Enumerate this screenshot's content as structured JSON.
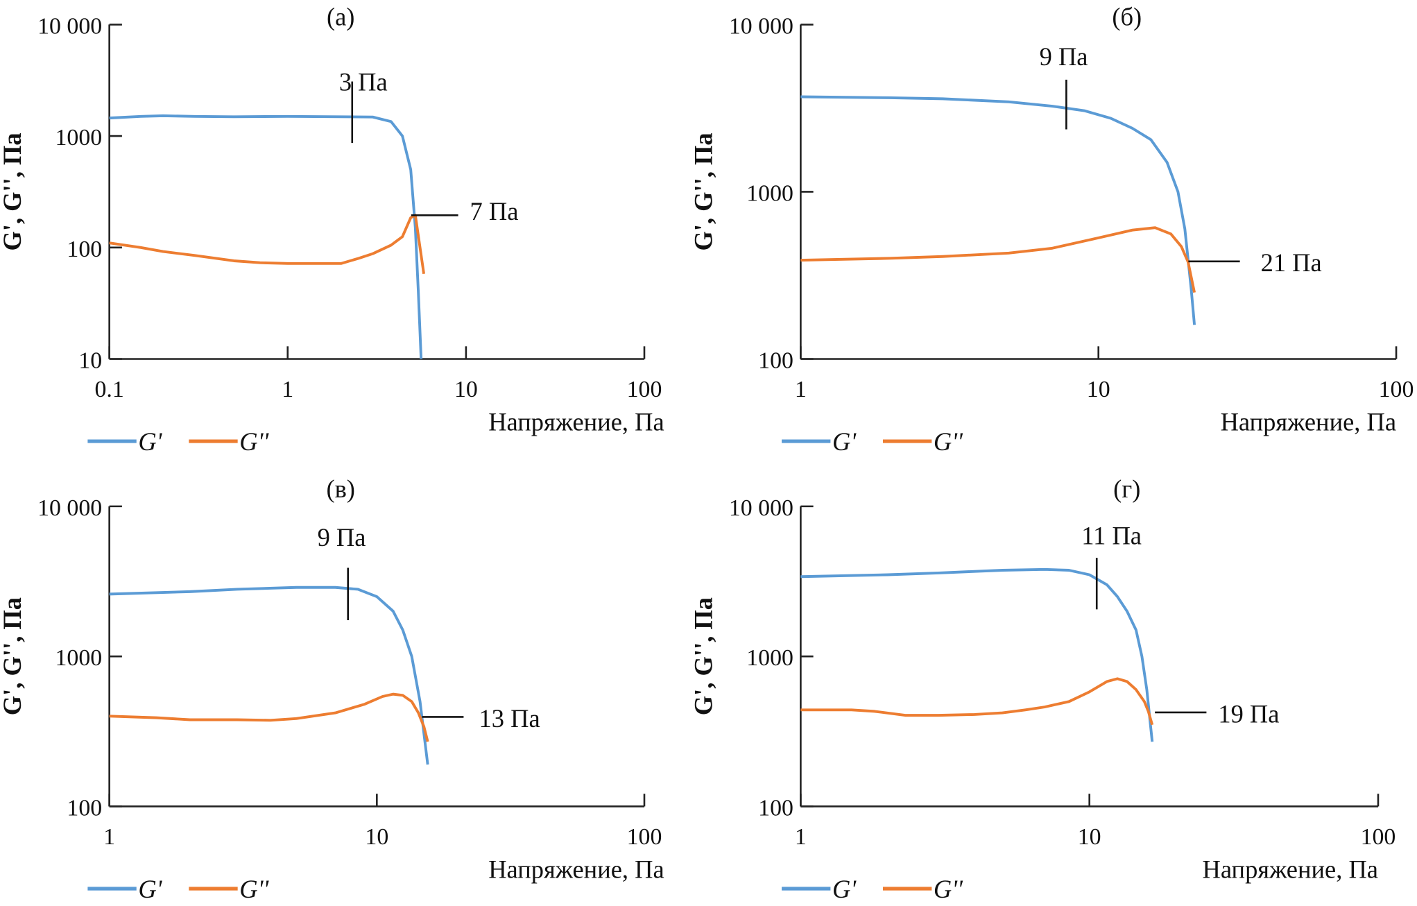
{
  "colors": {
    "G_prime": "#5b9bd5",
    "G_double_prime": "#ed7d31",
    "axis": "#222222"
  },
  "chart_data": [
    {
      "type": "line",
      "panel": "(а)",
      "xscale": "log",
      "yscale": "log",
      "xlim": [
        0.1,
        100
      ],
      "ylim": [
        10,
        10000
      ],
      "xticks": [
        "0.1",
        "1",
        "10",
        "100"
      ],
      "yticks": [
        "10",
        "100",
        "1000",
        "10 000"
      ],
      "xlabel": "Напряжение, Па",
      "ylabel": "G', G'', Па",
      "legend": "bottom-left",
      "series": [
        {
          "name": "G'",
          "x": [
            0.1,
            0.15,
            0.2,
            0.3,
            0.5,
            1,
            2,
            3,
            3.8,
            4.4,
            4.9,
            5.2,
            5.4,
            5.6
          ],
          "y": [
            1450,
            1500,
            1520,
            1500,
            1490,
            1500,
            1490,
            1480,
            1350,
            1000,
            500,
            150,
            40,
            10
          ]
        },
        {
          "name": "G''",
          "x": [
            0.1,
            0.15,
            0.2,
            0.3,
            0.5,
            0.7,
            1,
            1.5,
            2,
            2.5,
            3,
            3.8,
            4.4,
            4.9,
            5.2,
            5.8
          ],
          "y": [
            110,
            100,
            92,
            85,
            76,
            73,
            72,
            72,
            72,
            80,
            88,
            105,
            125,
            185,
            195,
            58
          ]
        }
      ],
      "annotations": [
        {
          "text": "3 Па",
          "orient": "vertical"
        },
        {
          "text": "7 Па",
          "orient": "horizontal"
        }
      ]
    },
    {
      "type": "line",
      "panel": "(б)",
      "xscale": "log",
      "yscale": "log",
      "xlim": [
        1,
        100
      ],
      "ylim": [
        100,
        10000
      ],
      "xticks": [
        "1",
        "10",
        "100"
      ],
      "yticks": [
        "100",
        "1000",
        "10 000"
      ],
      "xlabel": "Напряжение, Па",
      "ylabel": "G', G'', Па",
      "legend": "bottom-left",
      "series": [
        {
          "name": "G'",
          "x": [
            1,
            2,
            3,
            5,
            7,
            9,
            11,
            13,
            15,
            17,
            18.5,
            19.5,
            20.5,
            21
          ],
          "y": [
            3700,
            3650,
            3600,
            3450,
            3250,
            3050,
            2750,
            2400,
            2050,
            1500,
            1000,
            600,
            260,
            160
          ]
        },
        {
          "name": "G''",
          "x": [
            1,
            2,
            3,
            5,
            7,
            10,
            13,
            15.5,
            17.5,
            19,
            20,
            21
          ],
          "y": [
            390,
            400,
            410,
            430,
            460,
            530,
            590,
            610,
            560,
            470,
            380,
            250
          ]
        }
      ],
      "annotations": [
        {
          "text": "9 Па",
          "orient": "vertical"
        },
        {
          "text": "21 Па",
          "orient": "horizontal"
        }
      ]
    },
    {
      "type": "line",
      "panel": "(в)",
      "xscale": "log",
      "yscale": "log",
      "xlim": [
        1,
        100
      ],
      "ylim": [
        100,
        10000
      ],
      "xticks": [
        "1",
        "10",
        "100"
      ],
      "yticks": [
        "100",
        "1000",
        "10 000"
      ],
      "xlabel": "Напряжение, Па",
      "ylabel": "G', G'', Па",
      "legend": "bottom-left",
      "series": [
        {
          "name": "G'",
          "x": [
            1,
            2,
            3,
            5,
            7,
            8.5,
            10,
            11.5,
            12.5,
            13.5,
            14.5,
            15.5
          ],
          "y": [
            2600,
            2700,
            2800,
            2880,
            2880,
            2800,
            2500,
            2000,
            1500,
            1000,
            500,
            190
          ]
        },
        {
          "name": "G''",
          "x": [
            1,
            1.5,
            2,
            3,
            4,
            5,
            7,
            9,
            10.5,
            11.5,
            12.5,
            13.5,
            14.3,
            15,
            15.5
          ],
          "y": [
            400,
            390,
            378,
            378,
            375,
            385,
            420,
            480,
            540,
            560,
            550,
            500,
            420,
            340,
            270
          ]
        }
      ],
      "annotations": [
        {
          "text": "9 Па",
          "orient": "vertical"
        },
        {
          "text": "13 Па",
          "orient": "horizontal"
        }
      ]
    },
    {
      "type": "line",
      "panel": "(г)",
      "xscale": "log",
      "yscale": "log",
      "xlim": [
        1,
        100
      ],
      "ylim": [
        100,
        10000
      ],
      "xticks": [
        "1",
        "10",
        "100"
      ],
      "yticks": [
        "100",
        "1000",
        "10 000"
      ],
      "xlabel": "Напряжение, Па",
      "ylabel": "G', G'', Па",
      "legend": "bottom-left",
      "series": [
        {
          "name": "G'",
          "x": [
            1,
            2,
            3,
            5,
            7,
            8.5,
            10,
            11.5,
            12.5,
            13.5,
            14.5,
            15.2,
            15.8,
            16.5
          ],
          "y": [
            3400,
            3500,
            3600,
            3750,
            3800,
            3750,
            3500,
            3000,
            2500,
            2000,
            1500,
            1000,
            600,
            270
          ]
        },
        {
          "name": "G''",
          "x": [
            1,
            1.5,
            1.8,
            2.3,
            3,
            4,
            5,
            6,
            7,
            8.5,
            10,
            11.5,
            12.5,
            13.5,
            14.5,
            15.5,
            16,
            16.5
          ],
          "y": [
            440,
            440,
            430,
            405,
            405,
            410,
            420,
            440,
            460,
            500,
            580,
            680,
            710,
            680,
            600,
            500,
            430,
            350
          ]
        }
      ],
      "annotations": [
        {
          "text": "11 Па",
          "orient": "vertical"
        },
        {
          "text": "19 Па",
          "orient": "horizontal"
        }
      ]
    }
  ]
}
